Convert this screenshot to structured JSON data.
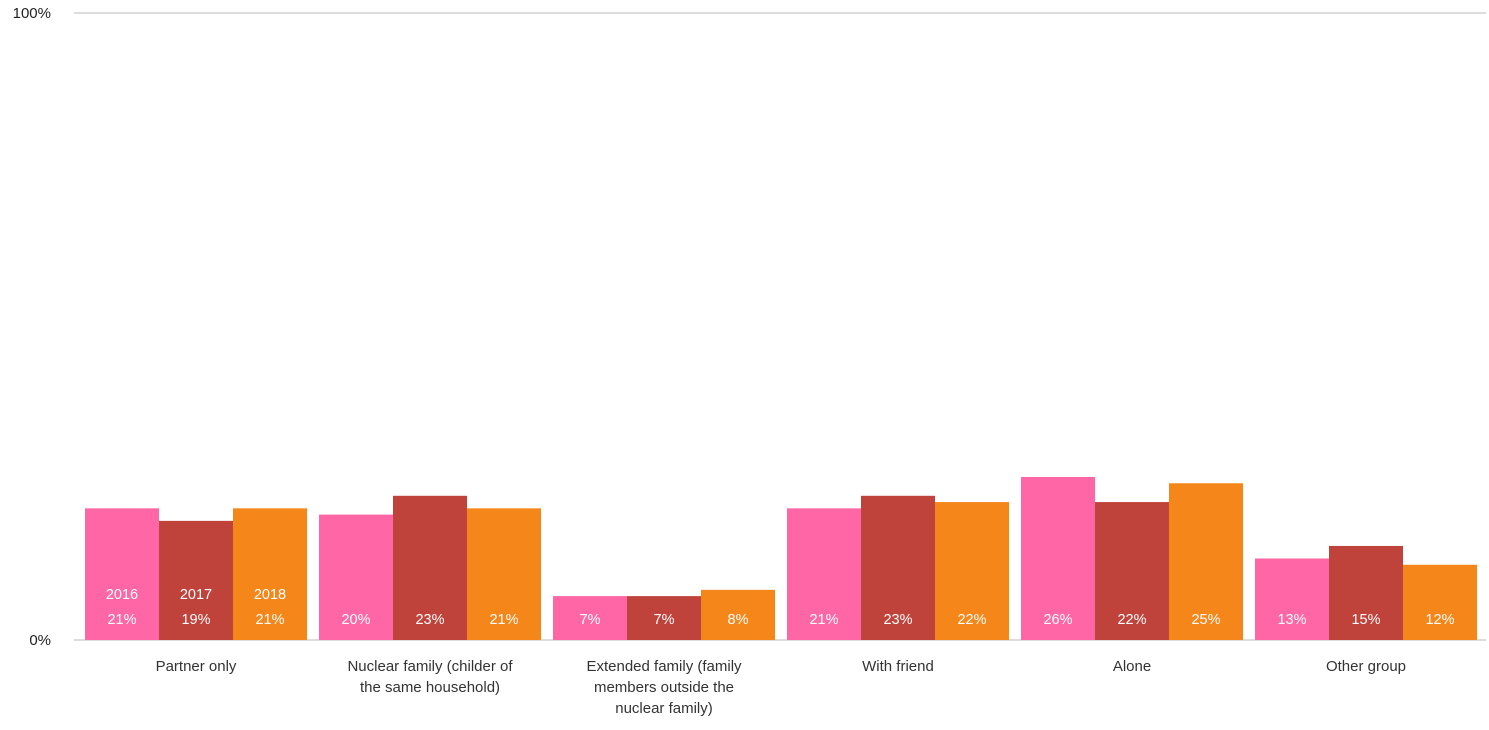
{
  "chart_data": {
    "type": "bar",
    "categories": [
      [
        "Partner only"
      ],
      [
        "Nuclear family (childer of",
        "the same household)"
      ],
      [
        "Extended family (family",
        "members outside the",
        "nuclear family)"
      ],
      [
        "With friend"
      ],
      [
        "Alone"
      ],
      [
        "Other group"
      ]
    ],
    "series": [
      {
        "name": "2016",
        "color": "#ff66a5",
        "values": [
          21,
          20,
          7,
          21,
          26,
          13
        ],
        "labels": [
          "21%",
          "20%",
          "7%",
          "21%",
          "26%",
          "13%"
        ]
      },
      {
        "name": "2017",
        "color": "#c0433b",
        "values": [
          19,
          23,
          7,
          23,
          22,
          15
        ],
        "labels": [
          "19%",
          "23%",
          "7%",
          "23%",
          "22%",
          "15%"
        ]
      },
      {
        "name": "2018",
        "color": "#f5871a",
        "values": [
          21,
          21,
          8,
          22,
          25,
          12
        ],
        "labels": [
          "21%",
          "21%",
          "8%",
          "22%",
          "25%",
          "12%"
        ]
      }
    ],
    "y_ticks": [
      "0%",
      "100%"
    ],
    "ylim": [
      0,
      100
    ],
    "grid": false,
    "title": "",
    "xlabel": "",
    "ylabel": ""
  }
}
